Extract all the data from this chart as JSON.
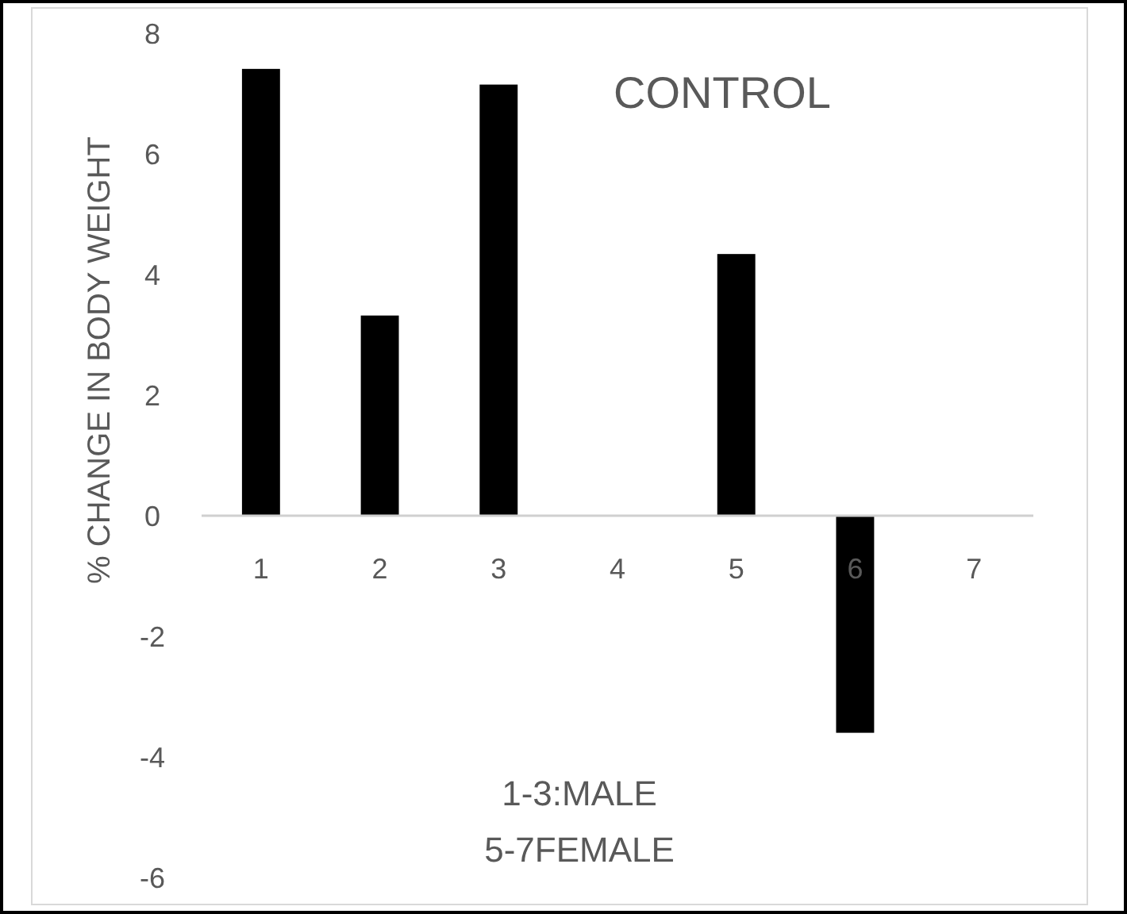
{
  "chart_data": {
    "type": "bar",
    "ylabel": "% CHANGE IN BODY WEIGHT",
    "categories": [
      "1",
      "2",
      "3",
      "4",
      "5",
      "6",
      "7"
    ],
    "values": [
      7.41,
      3.32,
      7.15,
      null,
      4.34,
      -3.6,
      null
    ],
    "color": "#000000",
    "ylim": [
      -6,
      8
    ],
    "yticks": [
      -6,
      -4,
      -2,
      0,
      2,
      4,
      6,
      8
    ],
    "grid": false,
    "annotations": [
      "CONTROL",
      "1-3:MALE\n5-7FEMALE"
    ]
  }
}
